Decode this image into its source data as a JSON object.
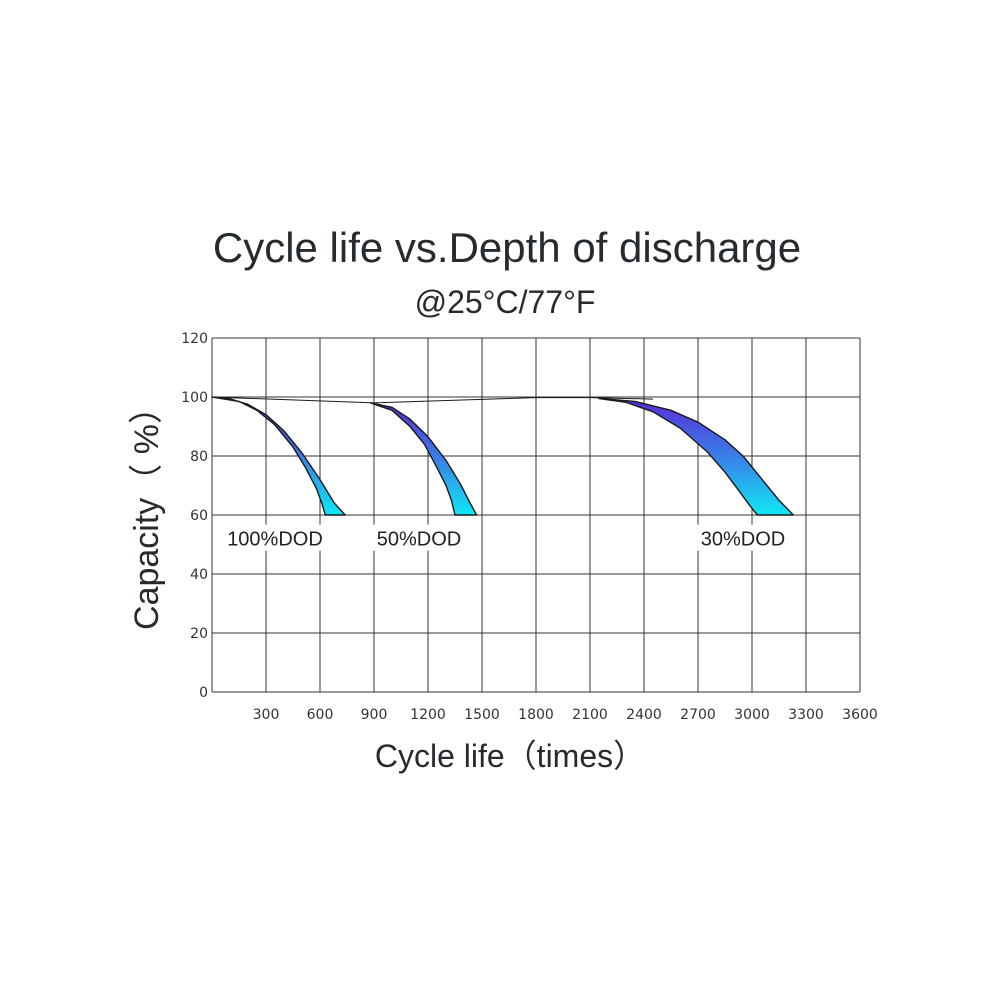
{
  "chart_data": {
    "type": "area",
    "title": "Cycle life vs.Depth of discharge",
    "subtitle": "@25°C/77°F",
    "xlabel": "Cycle life（times）",
    "ylabel": "Capacity（ %）",
    "xlim": [
      0,
      3600
    ],
    "ylim": [
      0,
      120
    ],
    "x_ticks": [
      "300",
      "600",
      "900",
      "1200",
      "1500",
      "1800",
      "2100",
      "2400",
      "2700",
      "3000",
      "3300",
      "3600"
    ],
    "y_ticks": [
      "0",
      "20",
      "40",
      "60",
      "80",
      "100",
      "120"
    ],
    "grid": true,
    "baseline": {
      "x": [
        0,
        900,
        1800,
        2100,
        2450
      ],
      "y": [
        100,
        98,
        99.8,
        99.8,
        99.3
      ]
    },
    "series": [
      {
        "name": "100%DOD",
        "label_position": [
          350,
          52
        ],
        "upper": {
          "x": [
            0,
            100,
            200,
            300,
            400,
            500,
            600,
            680,
            740
          ],
          "y": [
            100,
            99.4,
            97.5,
            94,
            88.5,
            81,
            72,
            64,
            60
          ]
        },
        "lower": {
          "x": [
            0,
            150,
            250,
            350,
            450,
            520,
            580,
            610,
            630
          ],
          "y": [
            100,
            98.5,
            95.5,
            90.5,
            83,
            76,
            69,
            64,
            60
          ]
        }
      },
      {
        "name": "50%DOD",
        "label_position": [
          1150,
          52
        ],
        "upper": {
          "x": [
            880,
            1000,
            1100,
            1200,
            1300,
            1380,
            1430,
            1470
          ],
          "y": [
            98,
            96.5,
            92.5,
            86.5,
            78.5,
            70.5,
            64.5,
            60
          ]
        },
        "lower": {
          "x": [
            880,
            1000,
            1100,
            1180,
            1250,
            1300,
            1330,
            1350
          ],
          "y": [
            98,
            95.5,
            90,
            84,
            76,
            70,
            65,
            60
          ]
        }
      },
      {
        "name": "30%DOD",
        "label_position": [
          2950,
          52
        ],
        "upper": {
          "x": [
            2150,
            2350,
            2550,
            2700,
            2850,
            2950,
            3050,
            3150,
            3230
          ],
          "y": [
            99.5,
            98.5,
            95.5,
            91.5,
            85.5,
            80,
            72.5,
            65,
            60
          ]
        },
        "lower": {
          "x": [
            2150,
            2300,
            2450,
            2600,
            2750,
            2850,
            2930,
            2990,
            3030
          ],
          "y": [
            99.5,
            98.2,
            95,
            89.5,
            81.5,
            74.5,
            68,
            63,
            60
          ]
        }
      }
    ],
    "colors": {
      "band_top": "#5a2bd6",
      "band_mid": "#3a7fe8",
      "band_bottom": "#10e8f5",
      "outline": "#1a1a1a",
      "grid": "#333333"
    }
  }
}
